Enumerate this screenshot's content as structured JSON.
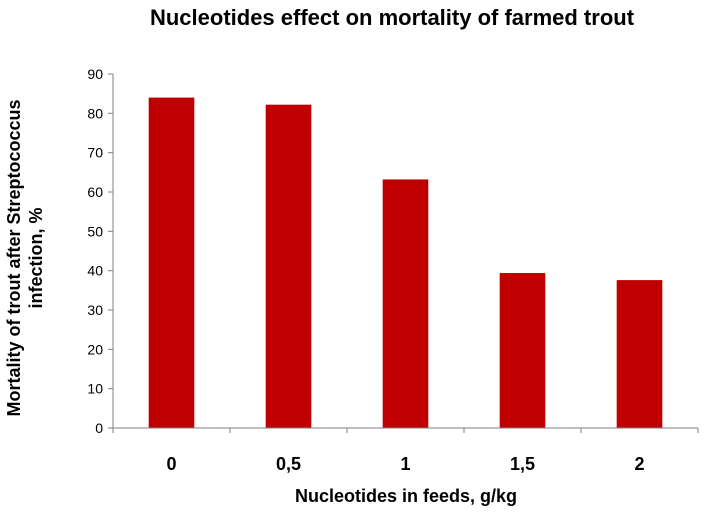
{
  "chart_data": {
    "type": "bar",
    "title": "Nucleotides effect on mortality of farmed trout",
    "xlabel": "Nucleotides in feeds, g/kg",
    "ylabel_lines": [
      "Mortality of trout after Streptococcus",
      "infection, %"
    ],
    "categories": [
      "0",
      "0,5",
      "1",
      "1,5",
      "2"
    ],
    "values": [
      84,
      82.2,
      63.2,
      39.4,
      37.6
    ],
    "ylim": [
      0,
      90
    ],
    "yticks": [
      0,
      10,
      20,
      30,
      40,
      50,
      60,
      70,
      80,
      90
    ],
    "grid": false,
    "legend": "none",
    "bar_color": "#c00000"
  }
}
